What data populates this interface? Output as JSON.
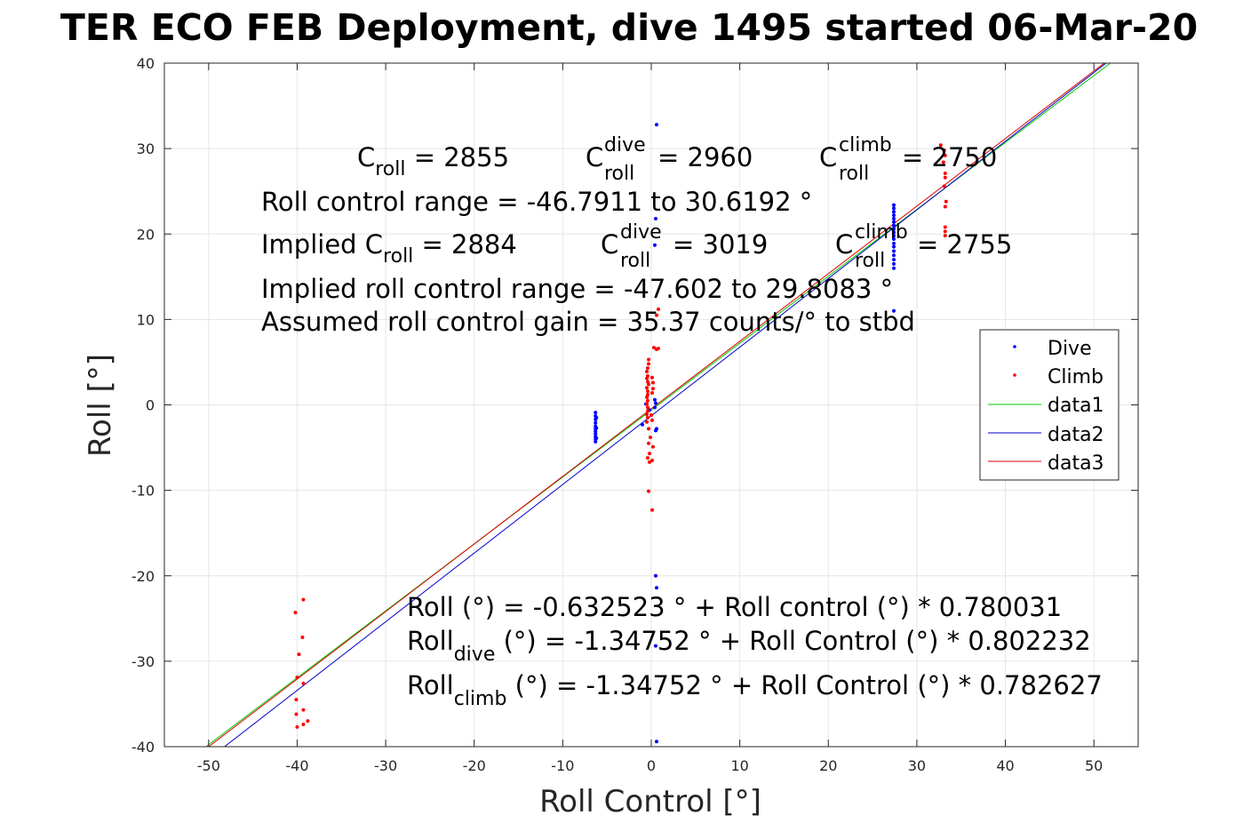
{
  "chart_data": {
    "type": "scatter",
    "title": "TER ECO FEB Deployment, dive 1495 started 06-Mar-20",
    "xlabel": "Roll Control [°]",
    "ylabel": "Roll [°]",
    "xlim": [
      -55,
      55
    ],
    "ylim": [
      -40,
      40
    ],
    "xticks": [
      -50,
      -40,
      -30,
      -20,
      -10,
      0,
      10,
      20,
      30,
      40,
      50
    ],
    "yticks": [
      -40,
      -30,
      -20,
      -10,
      0,
      10,
      20,
      30,
      40
    ],
    "grid": true,
    "legend_position": "right",
    "series": [
      {
        "name": "Dive",
        "kind": "points",
        "color": "#0000ff",
        "points": [
          [
            0.6,
            32.8
          ],
          [
            0.5,
            21.8
          ],
          [
            0.4,
            18.7
          ],
          [
            0.5,
            -20.0
          ],
          [
            0.6,
            -21.4
          ],
          [
            0.5,
            -28.2
          ],
          [
            0.6,
            -39.4
          ],
          [
            0.4,
            0.6
          ],
          [
            0.5,
            0.2
          ],
          [
            0.4,
            -0.3
          ],
          [
            0.6,
            -2.8
          ],
          [
            0.5,
            -3.0
          ],
          [
            -1.0,
            -2.3
          ],
          [
            -0.6,
            0.1
          ],
          [
            -0.2,
            -0.6
          ],
          [
            -6.3,
            -0.9
          ],
          [
            -6.3,
            -1.3
          ],
          [
            -6.3,
            -1.7
          ],
          [
            -6.3,
            -2.1
          ],
          [
            -6.3,
            -2.5
          ],
          [
            -6.3,
            -2.8
          ],
          [
            -6.3,
            -3.1
          ],
          [
            -6.3,
            -3.4
          ],
          [
            -6.3,
            -3.7
          ],
          [
            -6.3,
            -4.0
          ],
          [
            -6.3,
            -4.3
          ],
          [
            -6.2,
            -1.5
          ],
          [
            -6.2,
            -2.7
          ],
          [
            -6.2,
            -3.9
          ],
          [
            27.4,
            23.4
          ],
          [
            27.4,
            23.0
          ],
          [
            27.4,
            22.6
          ],
          [
            27.4,
            22.2
          ],
          [
            27.4,
            21.8
          ],
          [
            27.4,
            21.4
          ],
          [
            27.4,
            21.0
          ],
          [
            27.4,
            20.6
          ],
          [
            27.4,
            20.2
          ],
          [
            27.4,
            19.8
          ],
          [
            27.4,
            19.4
          ],
          [
            27.4,
            18.9
          ],
          [
            27.4,
            18.5
          ],
          [
            27.4,
            18.0
          ],
          [
            27.4,
            17.5
          ],
          [
            27.4,
            17.0
          ],
          [
            27.4,
            16.5
          ],
          [
            27.4,
            16.0
          ],
          [
            27.4,
            11.0
          ]
        ]
      },
      {
        "name": "Climb",
        "kind": "points",
        "color": "#ff0000",
        "points": [
          [
            -40.2,
            -24.3
          ],
          [
            -39.3,
            -22.8
          ],
          [
            -39.4,
            -27.2
          ],
          [
            -39.8,
            -29.2
          ],
          [
            -40.0,
            -31.9
          ],
          [
            -39.3,
            -32.6
          ],
          [
            -40.1,
            -34.5
          ],
          [
            -39.3,
            -35.7
          ],
          [
            -40.1,
            -36.2
          ],
          [
            -38.8,
            -37.0
          ],
          [
            -39.3,
            -37.4
          ],
          [
            -40.0,
            -37.7
          ],
          [
            32.7,
            30.4
          ],
          [
            33.1,
            29.8
          ],
          [
            33.2,
            29.2
          ],
          [
            33.0,
            28.4
          ],
          [
            33.2,
            27.1
          ],
          [
            33.2,
            26.6
          ],
          [
            33.1,
            25.6
          ],
          [
            33.3,
            23.8
          ],
          [
            33.2,
            23.2
          ],
          [
            33.2,
            20.8
          ],
          [
            33.2,
            20.3
          ],
          [
            33.2,
            19.8
          ],
          [
            0.8,
            11.2
          ],
          [
            0.6,
            10.5
          ],
          [
            0.3,
            6.7
          ],
          [
            0.6,
            6.5
          ],
          [
            0.8,
            6.6
          ],
          [
            -0.3,
            5.3
          ],
          [
            -0.3,
            4.8
          ],
          [
            -0.4,
            4.3
          ],
          [
            -0.5,
            3.9
          ],
          [
            -0.4,
            3.4
          ],
          [
            -0.5,
            3.1
          ],
          [
            -0.4,
            2.7
          ],
          [
            -0.3,
            2.4
          ],
          [
            -0.5,
            2.0
          ],
          [
            -0.4,
            1.6
          ],
          [
            -0.4,
            1.2
          ],
          [
            -0.5,
            0.9
          ],
          [
            -0.4,
            0.5
          ],
          [
            -0.5,
            0.1
          ],
          [
            -0.4,
            -0.3
          ],
          [
            -0.4,
            -0.7
          ],
          [
            -0.5,
            -1.1
          ],
          [
            -0.4,
            -1.5
          ],
          [
            -0.5,
            -2.0
          ],
          [
            -0.3,
            -2.8
          ],
          [
            0.1,
            3.2
          ],
          [
            0.2,
            2.6
          ],
          [
            0.2,
            1.9
          ],
          [
            0.1,
            1.4
          ],
          [
            0.0,
            -1.2
          ],
          [
            0.1,
            -1.8
          ],
          [
            -0.1,
            -3.8
          ],
          [
            -0.3,
            -4.5
          ],
          [
            0.2,
            -4.9
          ],
          [
            -0.2,
            -5.7
          ],
          [
            -0.4,
            -6.2
          ],
          [
            0.1,
            -6.5
          ],
          [
            -0.2,
            -6.7
          ],
          [
            -0.3,
            -10.1
          ],
          [
            0.1,
            -12.3
          ]
        ]
      },
      {
        "name": "data1",
        "kind": "line",
        "color": "#00cc00",
        "x": [
          -50.3,
          52.5
        ],
        "y": [
          -40.0,
          40.5
        ]
      },
      {
        "name": "data2",
        "kind": "line",
        "color": "#0000cc",
        "x": [
          -48.2,
          52.0
        ],
        "y": [
          -40.0,
          40.5
        ]
      },
      {
        "name": "data3",
        "kind": "line",
        "color": "#dd0000",
        "x": [
          -50.0,
          51.8
        ],
        "y": [
          -40.0,
          40.5
        ]
      }
    ]
  },
  "annotations": {
    "line1": {
      "c_roll_label": "C",
      "c_roll_sub": "roll",
      "c_roll_value": " = 2855",
      "c_dive_label": "C",
      "c_dive_sup": "dive",
      "c_dive_sub": "roll",
      "c_dive_value": " = 2960",
      "c_climb_label": "C",
      "c_climb_sup": "climb",
      "c_climb_sub": "roll",
      "c_climb_value": " = 2750"
    },
    "range": "Roll control range = -46.7911 to 30.6192 °",
    "line3": {
      "implied_label": "Implied C",
      "implied_sub": "roll",
      "implied_value": " = 2884",
      "dive_label": "C",
      "dive_sup": "dive",
      "dive_sub": "roll",
      "dive_value": " = 3019",
      "climb_label": "C",
      "climb_sup": "climb",
      "climb_sub": "roll",
      "climb_value": " = 2755"
    },
    "implied_range": "Implied roll control range = -47.602 to 29.8083 °",
    "gain": "Assumed roll control gain = 35.37 counts/° to stbd",
    "fit1": "Roll (°) = -0.632523 ° + Roll control (°) * 0.780031",
    "fit2_pre": "Roll",
    "fit2_sub": "dive",
    "fit2_post": " (°) = -1.34752 ° + Roll Control (°) * 0.802232",
    "fit3_pre": "Roll",
    "fit3_sub": "climb",
    "fit3_post": " (°) = -1.34752 ° + Roll Control (°) * 0.782627"
  }
}
